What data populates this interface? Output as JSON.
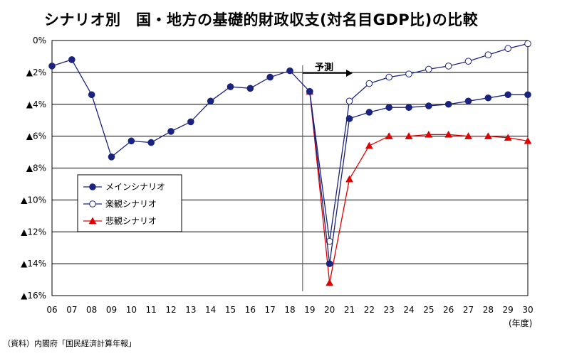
{
  "title": "シナリオ別　国・地方の基礎的財政収支(対名目GDP比)の比較",
  "source": "（資料）内閣府「国民経済計算年報」",
  "chart_data": {
    "type": "line",
    "title": "シナリオ別　国・地方の基礎的財政収支(対名目GDP比)の比較",
    "x": [
      "06",
      "07",
      "08",
      "09",
      "10",
      "11",
      "12",
      "13",
      "14",
      "15",
      "16",
      "17",
      "18",
      "19",
      "20",
      "21",
      "22",
      "23",
      "24",
      "25",
      "26",
      "27",
      "28",
      "29",
      "30"
    ],
    "xlabel": "(年度)",
    "ylabel": "",
    "ylim": [
      -16,
      0
    ],
    "ytick_values": [
      0,
      -2,
      -4,
      -6,
      -8,
      -10,
      -12,
      -14,
      -16
    ],
    "ytick_labels": [
      "0%",
      "▲2%",
      "▲4%",
      "▲6%",
      "▲8%",
      "▲10%",
      "▲12%",
      "▲14%",
      "▲16%"
    ],
    "grid": "horizontal",
    "legend_position": "left-middle",
    "forecast_label": "予測",
    "forecast_start": "19",
    "series": [
      {
        "name": "メインシナリオ",
        "color": "#1a237e",
        "marker": "filled-circle",
        "values": [
          -1.6,
          -1.2,
          -3.4,
          -7.3,
          -6.3,
          -6.4,
          -5.7,
          -5.1,
          -3.8,
          -2.9,
          -3.0,
          -2.3,
          -1.9,
          -3.2,
          -14.0,
          -4.9,
          -4.5,
          -4.2,
          -4.2,
          -4.1,
          -4.0,
          -3.8,
          -3.6,
          -3.4,
          -3.4
        ]
      },
      {
        "name": "楽観シナリオ",
        "color": "#1a237e",
        "marker": "open-circle",
        "values": [
          null,
          null,
          null,
          null,
          null,
          null,
          null,
          null,
          null,
          null,
          null,
          null,
          null,
          -3.2,
          -12.6,
          -3.8,
          -2.7,
          -2.3,
          -2.1,
          -1.8,
          -1.6,
          -1.3,
          -0.9,
          -0.5,
          -0.2
        ]
      },
      {
        "name": "悲観シナリオ",
        "color": "#e00000",
        "marker": "triangle",
        "values": [
          null,
          null,
          null,
          null,
          null,
          null,
          null,
          null,
          null,
          null,
          null,
          null,
          null,
          -3.2,
          -15.2,
          -8.7,
          -6.6,
          -6.0,
          -6.0,
          -5.9,
          -5.9,
          -6.0,
          -6.0,
          -6.1,
          -6.3
        ]
      }
    ]
  }
}
